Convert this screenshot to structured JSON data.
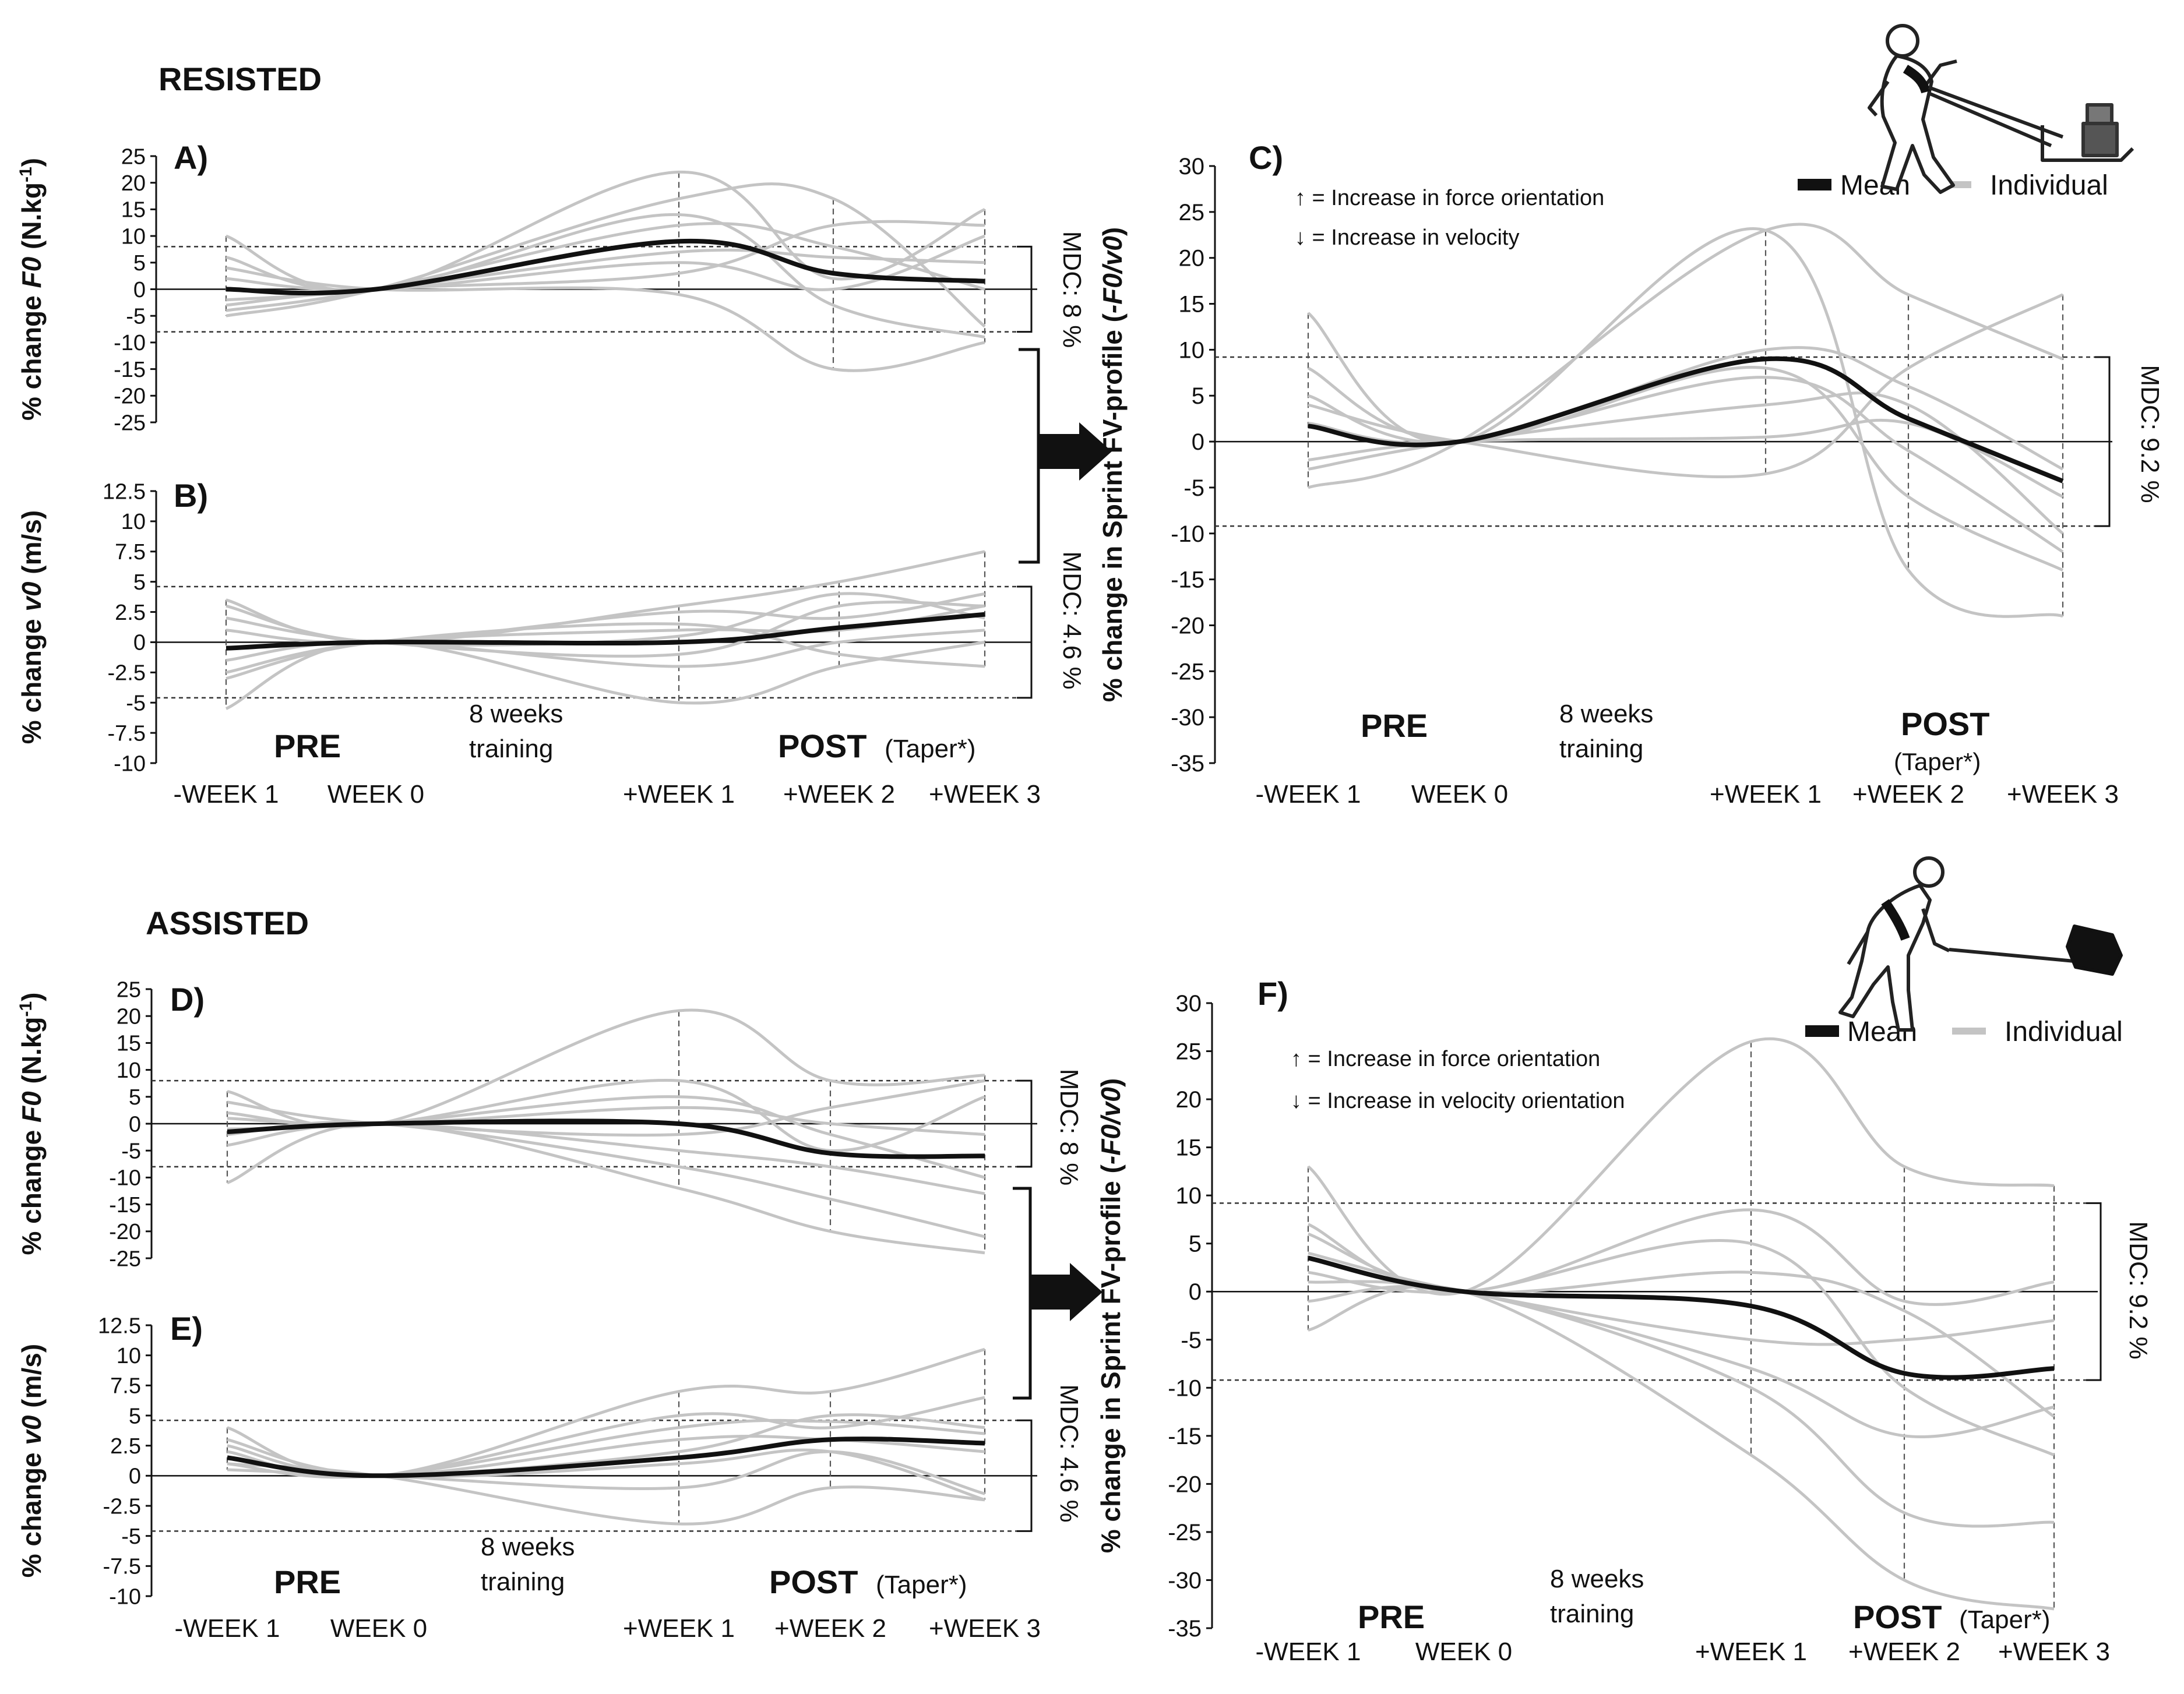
{
  "section_titles": {
    "resisted": "RESISTED",
    "assisted": "ASSISTED"
  },
  "legend": {
    "mean": "Mean",
    "individual": "Individual"
  },
  "annotations": {
    "c_up": "↑ = Increase in force orientation",
    "c_down": "↓ = Increase in velocity",
    "f_up": "↑ = Increase in force orientation",
    "f_down": "↓ = Increase in velocity orientation"
  },
  "colors": {
    "mean": "#111111",
    "individual": "#c4c4c4",
    "axis": "#111111"
  },
  "phase_labels": {
    "pre": "PRE",
    "training_1": "8 weeks",
    "training_2": "training",
    "post": "POST",
    "taper": "(Taper*)"
  },
  "icons": {
    "resisted": "sled-pull-icon",
    "assisted": "assisted-tow-icon"
  },
  "chart_data": [
    {
      "id": "A",
      "type": "line",
      "panel_label": "A)",
      "ylabel": "% change F0 (N.kg-1)",
      "ylabel_pre": "% change ",
      "ylabel_var": "F0",
      "ylabel_unit": " (N.kg",
      "ylabel_sup": "-1",
      "ylabel_close": ")",
      "ylim": [
        -25,
        25
      ],
      "yticks": [
        "25",
        "20",
        "15",
        "10",
        "5",
        "0",
        "-5",
        "-10",
        "-15",
        "-20",
        "-25"
      ],
      "xticks": [
        "-WEEK 1",
        "WEEK 0",
        "+WEEK 1",
        "+WEEK 2",
        "+WEEK 3"
      ],
      "mdc": "MDC: 8 %",
      "mdc_value": 8,
      "mean": [
        0,
        0,
        9,
        3,
        1.5
      ],
      "individual": [
        [
          10,
          0,
          22,
          2,
          15
        ],
        [
          -5,
          0,
          17,
          17,
          -7
        ],
        [
          4,
          0,
          -1,
          -15,
          -10
        ],
        [
          -4,
          0,
          12,
          8,
          0
        ],
        [
          2,
          0,
          5,
          0,
          10
        ],
        [
          -2,
          0,
          7,
          6,
          5
        ],
        [
          6,
          0,
          14,
          -3,
          -9
        ],
        [
          -3,
          0,
          3,
          12,
          12
        ]
      ]
    },
    {
      "id": "B",
      "type": "line",
      "panel_label": "B)",
      "ylabel": "% change v0 (m/s)",
      "ylabel_pre": "% change ",
      "ylabel_var": "v0",
      "ylabel_unit": " (m/s)",
      "ylim": [
        -10,
        12.5
      ],
      "yticks": [
        "12.5",
        "10",
        "7.5",
        "5",
        "2.5",
        "0",
        "-2.5",
        "-5",
        "-7.5",
        "-10"
      ],
      "xticks": [
        "-WEEK 1",
        "WEEK 0",
        "+WEEK 1",
        "+WEEK 2",
        "+WEEK 3"
      ],
      "mdc": "MDC: 4.6 %",
      "mdc_value": 4.6,
      "mean": [
        -0.5,
        0,
        0,
        1.2,
        2.3
      ],
      "individual": [
        [
          3.5,
          0,
          3,
          5,
          7.5
        ],
        [
          -5.5,
          0,
          -5,
          -2,
          0
        ],
        [
          2,
          0,
          -1,
          3,
          3
        ],
        [
          -3,
          0,
          1.5,
          -1,
          -2
        ],
        [
          1,
          0,
          2.5,
          2,
          4
        ],
        [
          -1.5,
          0,
          -2,
          0,
          1
        ],
        [
          3,
          0,
          0.5,
          4,
          2
        ],
        [
          -2.5,
          0,
          1,
          1,
          3
        ]
      ]
    },
    {
      "id": "C",
      "type": "line",
      "panel_label": "C)",
      "ylabel": "% change in Sprint FV-profile (-F0/v0)",
      "ylabel_pre": "% change in Sprint FV-profile (",
      "ylabel_var": "-F0/v0",
      "ylabel_close": ")",
      "ylim": [
        -35,
        30
      ],
      "yticks": [
        "30",
        "25",
        "20",
        "15",
        "10",
        "5",
        "0",
        "-5",
        "-10",
        "-15",
        "-20",
        "-25",
        "-30",
        "-35"
      ],
      "xticks": [
        "-WEEK 1",
        "WEEK 0",
        "+WEEK 1",
        "+WEEK 2",
        "+WEEK 3"
      ],
      "mdc": "MDC: 9.2 %",
      "mdc_value": 9.2,
      "mean": [
        1.7,
        0,
        9,
        2.5,
        -4.3
      ],
      "individual": [
        [
          14,
          0,
          23,
          -14,
          -19
        ],
        [
          -5,
          0,
          23,
          16,
          9
        ],
        [
          4,
          0,
          -3.5,
          8,
          16
        ],
        [
          -3,
          0,
          4,
          4,
          -10
        ],
        [
          8,
          0,
          8,
          -6,
          -14
        ],
        [
          -2,
          0,
          0.5,
          2,
          -6
        ],
        [
          2,
          0,
          7,
          -1,
          -12
        ],
        [
          5,
          0,
          10,
          6,
          -3
        ]
      ]
    },
    {
      "id": "D",
      "type": "line",
      "panel_label": "D)",
      "ylabel": "% change F0 (N.kg-1)",
      "ylabel_pre": "% change ",
      "ylabel_var": "F0",
      "ylabel_unit": " (N.kg",
      "ylabel_sup": "-1",
      "ylabel_close": ")",
      "ylim": [
        -25,
        25
      ],
      "yticks": [
        "25",
        "20",
        "15",
        "10",
        "5",
        "0",
        "-5",
        "-10",
        "-15",
        "-20",
        "-25"
      ],
      "xticks": [
        "-WEEK 1",
        "WEEK 0",
        "+WEEK 1",
        "+WEEK 2",
        "+WEEK 3"
      ],
      "mdc": "MDC: 8 %",
      "mdc_value": 8,
      "mean": [
        -1.5,
        0,
        0,
        -5.5,
        -6
      ],
      "individual": [
        [
          6,
          0,
          21,
          8,
          9
        ],
        [
          -11,
          0,
          -12,
          -20,
          -24
        ],
        [
          2,
          0,
          8,
          -5,
          5
        ],
        [
          -4,
          0,
          -5,
          -8,
          -13
        ],
        [
          1,
          0,
          3,
          0,
          -2
        ],
        [
          -2,
          0,
          -8,
          -14,
          -21
        ],
        [
          4,
          0,
          -2,
          3,
          8
        ],
        [
          -1,
          0,
          5,
          -2,
          -10
        ]
      ]
    },
    {
      "id": "E",
      "type": "line",
      "panel_label": "E)",
      "ylabel": "% change v0 (m/s)",
      "ylabel_pre": "% change ",
      "ylabel_var": "v0",
      "ylabel_unit": " (m/s)",
      "ylim": [
        -10,
        12.5
      ],
      "yticks": [
        "12.5",
        "10",
        "7.5",
        "5",
        "2.5",
        "0",
        "-2.5",
        "-5",
        "-7.5",
        "-10"
      ],
      "xticks": [
        "-WEEK 1",
        "WEEK 0",
        "+WEEK 1",
        "+WEEK 2",
        "+WEEK 3"
      ],
      "mdc": "MDC: 4.6 %",
      "mdc_value": 4.6,
      "mean": [
        1.5,
        0,
        1.5,
        3,
        2.7
      ],
      "individual": [
        [
          4,
          0,
          7,
          7,
          10.5
        ],
        [
          1,
          0,
          -4,
          -1,
          -2
        ],
        [
          2,
          0,
          5,
          4,
          6.5
        ],
        [
          1.5,
          0,
          2,
          5,
          4
        ],
        [
          0.5,
          0,
          -1,
          2,
          -1.5
        ],
        [
          2.5,
          0,
          3,
          3,
          2
        ],
        [
          1,
          0,
          4,
          4.5,
          3.5
        ],
        [
          3,
          0,
          1,
          2,
          -2
        ]
      ]
    },
    {
      "id": "F",
      "type": "line",
      "panel_label": "F)",
      "ylabel": "% change in Sprint FV-profile (-F0/v0)",
      "ylabel_pre": "% change in Sprint FV-profile (",
      "ylabel_var": "-F0/v0",
      "ylabel_close": ")",
      "ylim": [
        -35,
        30
      ],
      "yticks": [
        "30",
        "25",
        "20",
        "15",
        "10",
        "5",
        "0",
        "-5",
        "-10",
        "-15",
        "-20",
        "-25",
        "-30",
        "-35"
      ],
      "xticks": [
        "-WEEK 1",
        "WEEK 0",
        "+WEEK 1",
        "+WEEK 2",
        "+WEEK 3"
      ],
      "mdc": "MDC: 9.2 %",
      "mdc_value": 9.2,
      "mean": [
        3.5,
        0,
        -1.5,
        -8.5,
        -8
      ],
      "individual": [
        [
          13,
          0,
          26,
          13,
          11
        ],
        [
          -4,
          0,
          -17,
          -30,
          -33
        ],
        [
          7,
          0,
          8.5,
          -1,
          1
        ],
        [
          2,
          0,
          5,
          -10,
          -17
        ],
        [
          -1,
          0,
          -10,
          -23,
          -24
        ],
        [
          4,
          0,
          -5,
          -5,
          -3
        ],
        [
          1,
          0,
          -8,
          -15,
          -12
        ],
        [
          6,
          0,
          2,
          -2,
          -13
        ]
      ]
    }
  ]
}
